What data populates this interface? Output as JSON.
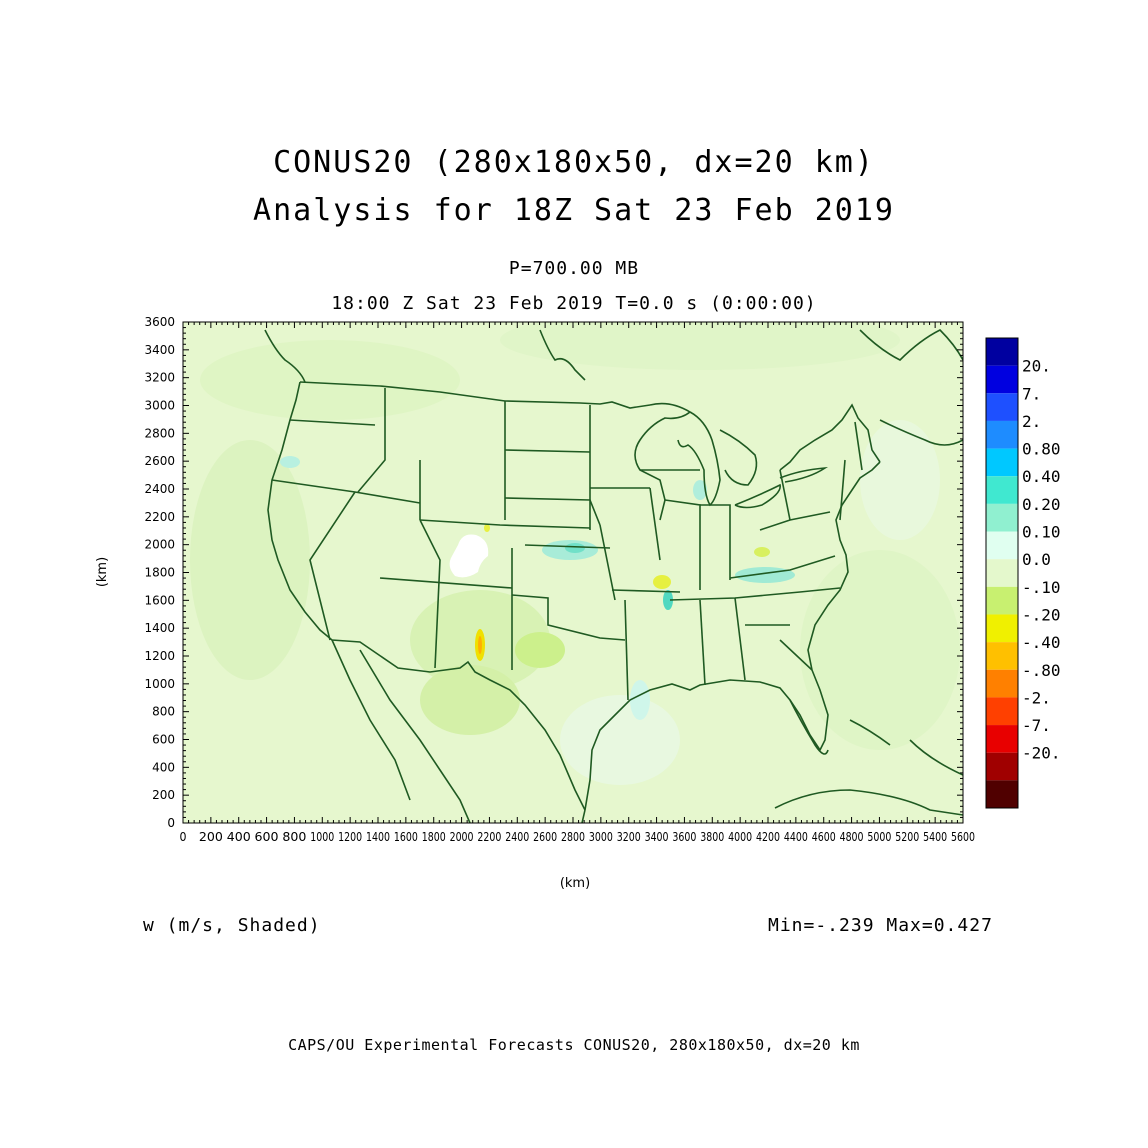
{
  "header": {
    "title_line1": "CONUS20 (280x180x50, dx=20 km)",
    "title_line2": "Analysis for 18Z Sat 23 Feb 2019",
    "level": "P=700.00 MB",
    "valid_time": "18:00 Z Sat 23 Feb 2019   T=0.0 s (0:00:00)"
  },
  "chart_data": {
    "type": "heatmap",
    "x_axis": {
      "label": "(km)",
      "range": [
        0,
        5600
      ],
      "ticks": [
        0,
        200,
        400,
        600,
        800,
        1000,
        1200,
        1400,
        1600,
        1800,
        2000,
        2200,
        2400,
        2600,
        2800,
        3000,
        3200,
        3400,
        3600,
        3800,
        4000,
        4200,
        4400,
        4600,
        4800,
        5000,
        5200,
        5400,
        5600
      ]
    },
    "y_axis": {
      "label": "(km)",
      "range": [
        0,
        3600
      ],
      "ticks": [
        0,
        200,
        400,
        600,
        800,
        1000,
        1200,
        1400,
        1600,
        1800,
        2000,
        2200,
        2400,
        2600,
        2800,
        3000,
        3200,
        3400,
        3600
      ]
    },
    "colorbar": {
      "labels": [
        "20.",
        "7.",
        "2.",
        "0.80",
        "0.40",
        "0.20",
        "0.10",
        "0.0",
        "-.10",
        "-.20",
        "-.40",
        "-.80",
        "-2.",
        "-7.",
        "-20."
      ],
      "colors": [
        "#0000a0",
        "#0000e0",
        "#1e50ff",
        "#1e8cff",
        "#00c8ff",
        "#40e8d0",
        "#90f0d0",
        "#e0fff0",
        "#e4f8cc",
        "#c8f070",
        "#f0f000",
        "#ffc000",
        "#ff8000",
        "#ff4000",
        "#e80000",
        "#a00000",
        "#500000"
      ]
    },
    "field_name": "w (m/s, Shaded)",
    "min": -0.239,
    "max": 0.427
  },
  "stats_text": "Min=-.239 Max=0.427",
  "variable_text": "w (m/s, Shaded)",
  "footer": "CAPS/OU Experimental Forecasts  CONUS20, 280x180x50, dx=20 km"
}
